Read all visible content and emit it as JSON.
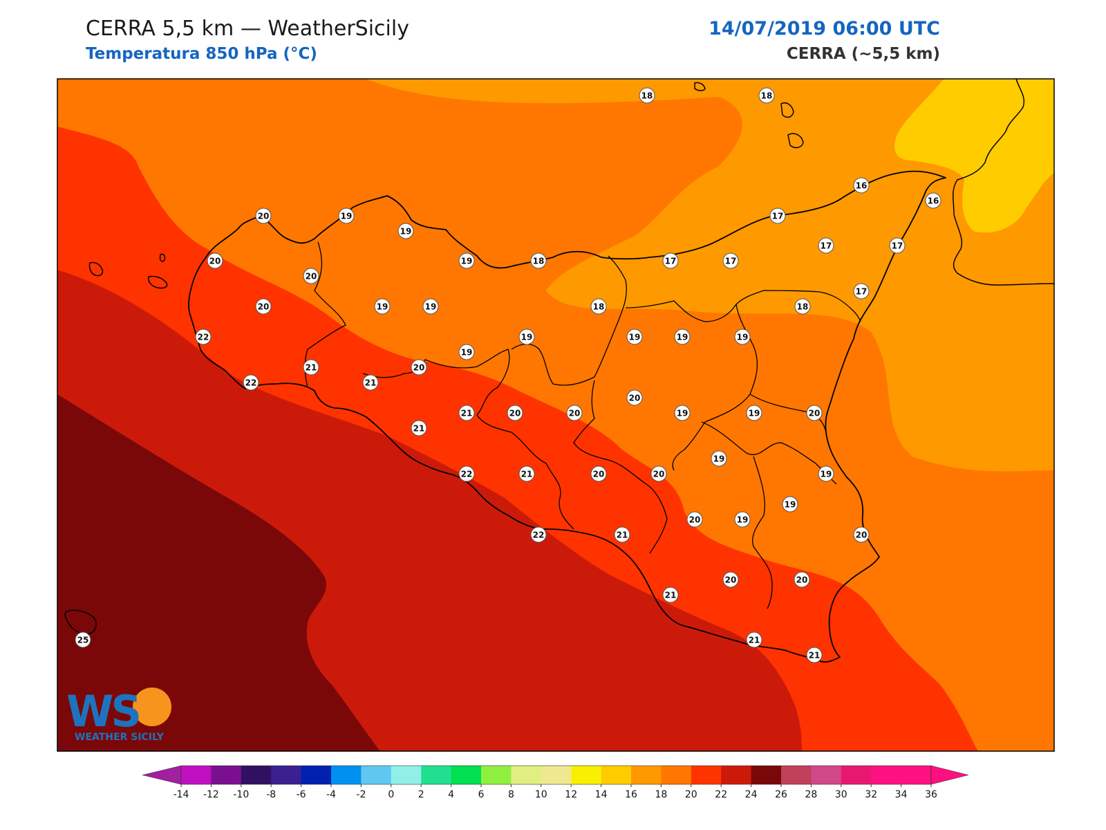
{
  "header": {
    "title": "CERRA 5,5 km — WeatherSicily",
    "subtitle": "Temperatura 850 hPa (°C)",
    "datetime": "14/07/2019 06:00 UTC",
    "model": "CERRA (~5,5 km)"
  },
  "logo": {
    "mark": "WS",
    "name": "WEATHER SICILY"
  },
  "colorbar": {
    "ticks": [
      "-14",
      "-12",
      "-10",
      "-8",
      "-6",
      "-4",
      "-2",
      "0",
      "2",
      "4",
      "6",
      "8",
      "10",
      "12",
      "14",
      "16",
      "18",
      "20",
      "22",
      "24",
      "26",
      "28",
      "30",
      "32",
      "34",
      "36"
    ],
    "colors": [
      "#a020a0",
      "#c010c0",
      "#7a1090",
      "#301060",
      "#3a2090",
      "#0020b0",
      "#0090f0",
      "#60c8f0",
      "#90f0e8",
      "#20e090",
      "#00e050",
      "#90f040",
      "#e0f080",
      "#f0e890",
      "#f8f000",
      "#ffcc00",
      "#ff9900",
      "#ff7700",
      "#ff3300",
      "#cc1a0a",
      "#7a0808",
      "#c0405a",
      "#d04888",
      "#e81870",
      "#ff1080"
    ]
  },
  "temperature_labels": [
    {
      "value": "18"
    },
    {
      "value": "18"
    },
    {
      "value": "16"
    },
    {
      "value": "16"
    },
    {
      "value": "20"
    },
    {
      "value": "19"
    },
    {
      "value": "19"
    },
    {
      "value": "17"
    },
    {
      "value": "20"
    },
    {
      "value": "20"
    },
    {
      "value": "19"
    },
    {
      "value": "18"
    },
    {
      "value": "17"
    },
    {
      "value": "17"
    },
    {
      "value": "17"
    },
    {
      "value": "17"
    },
    {
      "value": "17"
    },
    {
      "value": "20"
    },
    {
      "value": "19"
    },
    {
      "value": "19"
    },
    {
      "value": "18"
    },
    {
      "value": "18"
    },
    {
      "value": "22"
    },
    {
      "value": "19"
    },
    {
      "value": "19"
    },
    {
      "value": "19"
    },
    {
      "value": "19"
    },
    {
      "value": "19"
    },
    {
      "value": "21"
    },
    {
      "value": "20"
    },
    {
      "value": "22"
    },
    {
      "value": "21"
    },
    {
      "value": "20"
    },
    {
      "value": "21"
    },
    {
      "value": "20"
    },
    {
      "value": "20"
    },
    {
      "value": "19"
    },
    {
      "value": "19"
    },
    {
      "value": "20"
    },
    {
      "value": "21"
    },
    {
      "value": "19"
    },
    {
      "value": "22"
    },
    {
      "value": "21"
    },
    {
      "value": "20"
    },
    {
      "value": "20"
    },
    {
      "value": "19"
    },
    {
      "value": "19"
    },
    {
      "value": "20"
    },
    {
      "value": "19"
    },
    {
      "value": "20"
    },
    {
      "value": "22"
    },
    {
      "value": "21"
    },
    {
      "value": "20"
    },
    {
      "value": "20"
    },
    {
      "value": "21"
    },
    {
      "value": "21"
    },
    {
      "value": "21"
    },
    {
      "value": "25"
    }
  ]
}
